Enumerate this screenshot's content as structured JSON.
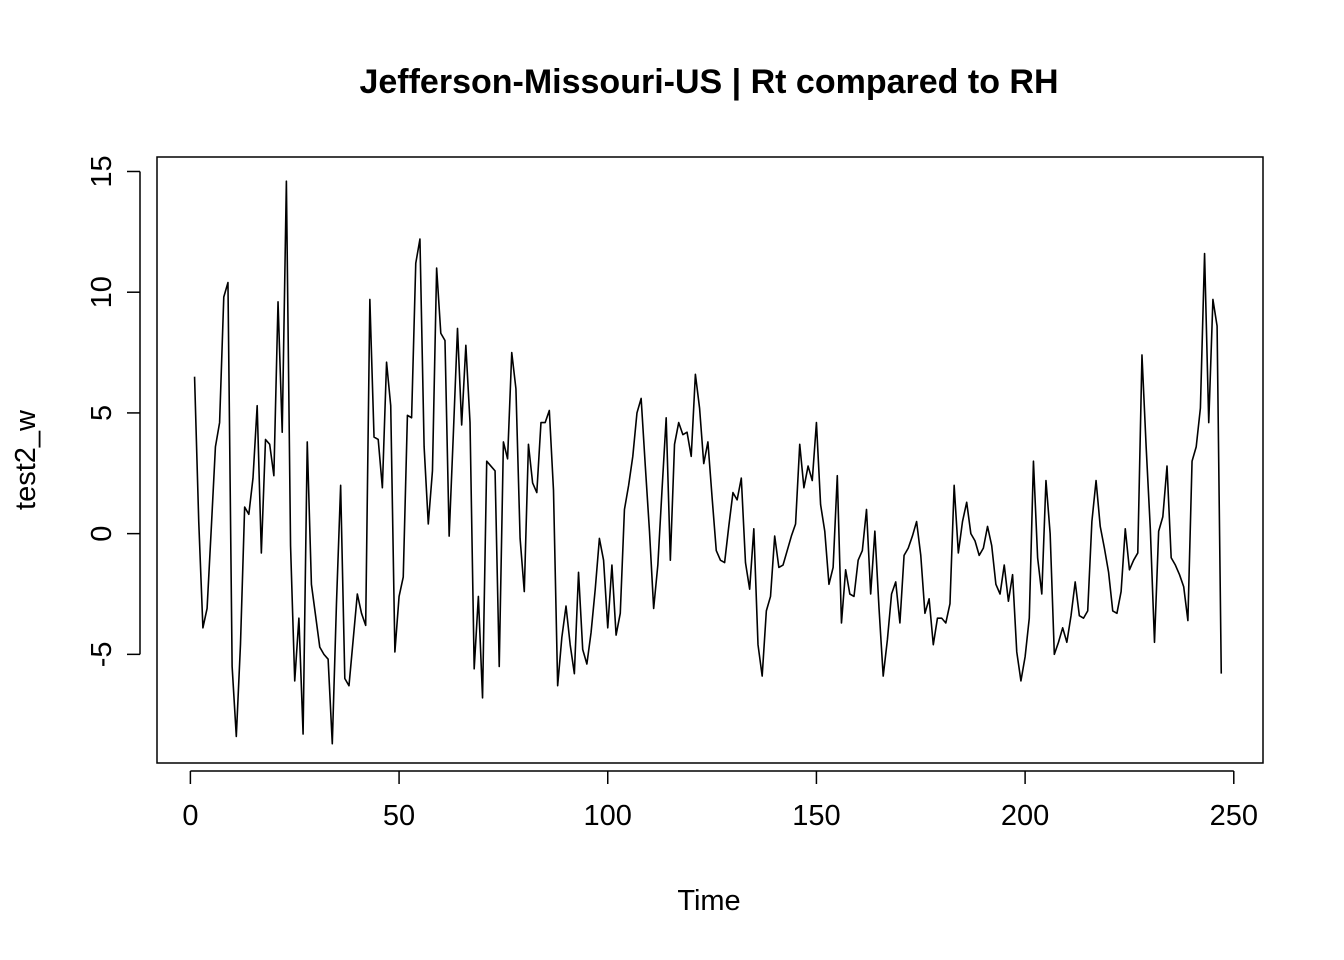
{
  "chart_data": {
    "type": "line",
    "title": "Jefferson-Missouri-US | Rt compared to RH",
    "xlabel": "Time",
    "ylabel": "test2_w",
    "xlim": [
      -8,
      257
    ],
    "ylim": [
      -9.5,
      15.6
    ],
    "xticks": [
      0,
      50,
      100,
      150,
      200,
      250
    ],
    "yticks": [
      -5,
      0,
      5,
      10,
      15
    ],
    "grid": false,
    "legend": "none",
    "line_color": "#000000",
    "series": [
      {
        "x_start": 1,
        "values": [
          6.5,
          0.5,
          -3.9,
          -3.1,
          0.2,
          3.6,
          4.6,
          9.8,
          10.4,
          -5.5,
          -8.4,
          -4.6,
          1.1,
          0.8,
          2.3,
          5.3,
          -0.8,
          3.9,
          3.7,
          2.4,
          9.6,
          4.2,
          14.6,
          -0.5,
          -6.1,
          -3.5,
          -8.3,
          3.8,
          -2.1,
          -3.4,
          -4.7,
          -5.0,
          -5.2,
          -8.7,
          -2.9,
          2.0,
          -6.0,
          -6.3,
          -4.4,
          -2.5,
          -3.3,
          -3.8,
          9.7,
          4.0,
          3.9,
          1.9,
          7.1,
          5.3,
          -4.9,
          -2.6,
          -1.8,
          4.9,
          4.8,
          11.2,
          12.2,
          3.6,
          0.4,
          2.6,
          11.0,
          8.3,
          8.0,
          -0.1,
          4.1,
          8.5,
          4.5,
          7.8,
          4.6,
          -5.6,
          -2.6,
          -6.8,
          3.0,
          2.8,
          2.6,
          -5.5,
          3.8,
          3.1,
          7.5,
          6.0,
          -0.2,
          -2.4,
          3.7,
          2.1,
          1.7,
          4.6,
          4.6,
          5.1,
          1.8,
          -6.3,
          -4.3,
          -3.0,
          -4.6,
          -5.8,
          -1.6,
          -4.8,
          -5.4,
          -4.1,
          -2.3,
          -0.2,
          -1.1,
          -3.9,
          -1.3,
          -4.2,
          -3.3,
          1.0,
          2.0,
          3.2,
          5.0,
          5.6,
          2.8,
          0.1,
          -3.1,
          -1.3,
          1.8,
          4.8,
          -1.1,
          3.7,
          4.6,
          4.1,
          4.2,
          3.2,
          6.6,
          5.2,
          2.9,
          3.8,
          1.5,
          -0.7,
          -1.1,
          -1.2,
          0.3,
          1.7,
          1.4,
          2.3,
          -1.2,
          -2.3,
          0.2,
          -4.6,
          -5.9,
          -3.2,
          -2.6,
          -0.1,
          -1.4,
          -1.3,
          -0.7,
          -0.1,
          0.4,
          3.7,
          1.9,
          2.8,
          2.2,
          4.6,
          1.2,
          0.1,
          -2.1,
          -1.4,
          2.4,
          -3.7,
          -1.5,
          -2.5,
          -2.6,
          -1.1,
          -0.7,
          1.0,
          -2.5,
          0.1,
          -3.1,
          -5.9,
          -4.4,
          -2.5,
          -2.0,
          -3.7,
          -0.9,
          -0.6,
          -0.1,
          0.5,
          -0.9,
          -3.3,
          -2.7,
          -4.6,
          -3.5,
          -3.5,
          -3.7,
          -2.9,
          2.0,
          -0.8,
          0.5,
          1.3,
          0.0,
          -0.3,
          -0.9,
          -0.6,
          0.3,
          -0.5,
          -2.1,
          -2.5,
          -1.3,
          -2.8,
          -1.7,
          -4.9,
          -6.1,
          -5.1,
          -3.5,
          3.0,
          -1.0,
          -2.5,
          2.2,
          0.0,
          -5.0,
          -4.5,
          -3.9,
          -4.5,
          -3.4,
          -2.0,
          -3.4,
          -3.5,
          -3.2,
          0.5,
          2.2,
          0.3,
          -0.6,
          -1.6,
          -3.2,
          -3.3,
          -2.4,
          0.2,
          -1.5,
          -1.1,
          -0.8,
          7.4,
          3.6,
          0.2,
          -4.5,
          0.1,
          0.7,
          2.8,
          -1.0,
          -1.3,
          -1.7,
          -2.2,
          -3.6,
          3.0,
          3.6,
          5.2,
          11.6,
          4.6,
          9.7,
          8.6,
          -5.8
        ]
      }
    ]
  }
}
